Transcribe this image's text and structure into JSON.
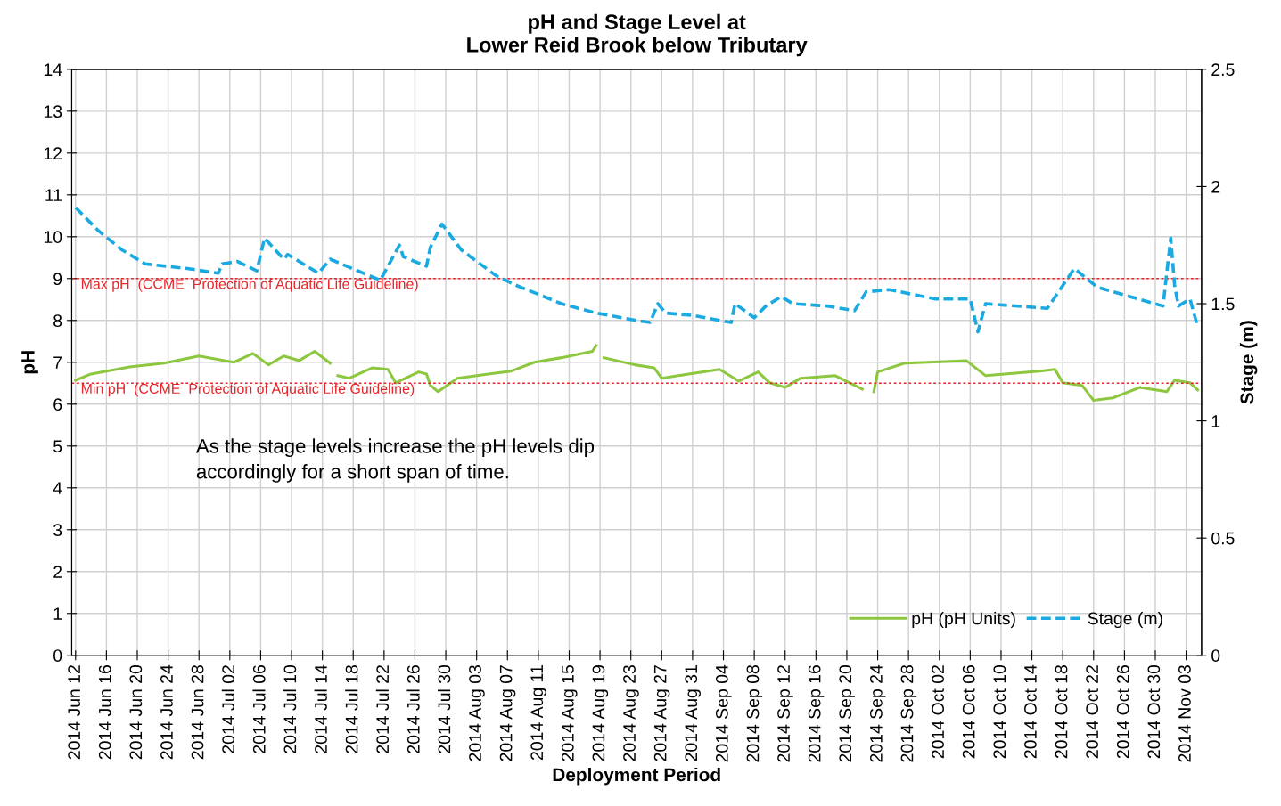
{
  "chart_data": {
    "type": "line",
    "title": "pH and Stage Level at\nLower Reid Brook below Tributary",
    "xlabel": "Deployment Period",
    "ylabel": "pH",
    "y2label": "Stage (m)",
    "xlim": [
      "2014-06-11T12:00",
      "2014-11-05"
    ],
    "xticks": [
      {
        "value": "2014-06-12",
        "label": "2014 Jun 12"
      },
      {
        "value": "2014-06-16",
        "label": "2014 Jun 16"
      },
      {
        "value": "2014-06-20",
        "label": "2014 Jun 20"
      },
      {
        "value": "2014-06-24",
        "label": "2014 Jun 24"
      },
      {
        "value": "2014-06-28",
        "label": "2014 Jun 28"
      },
      {
        "value": "2014-07-02",
        "label": "2014 Jul 02"
      },
      {
        "value": "2014-07-06",
        "label": "2014 Jul 06"
      },
      {
        "value": "2014-07-10",
        "label": "2014 Jul 10"
      },
      {
        "value": "2014-07-14",
        "label": "2014 Jul 14"
      },
      {
        "value": "2014-07-18",
        "label": "2014 Jul 18"
      },
      {
        "value": "2014-07-22",
        "label": "2014 Jul 22"
      },
      {
        "value": "2014-07-26",
        "label": "2014 Jul 26"
      },
      {
        "value": "2014-07-30",
        "label": "2014 Jul 30"
      },
      {
        "value": "2014-08-03",
        "label": "2014 Aug 03"
      },
      {
        "value": "2014-08-07",
        "label": "2014 Aug 07"
      },
      {
        "value": "2014-08-11",
        "label": "2014 Aug 11"
      },
      {
        "value": "2014-08-15",
        "label": "2014 Aug 15"
      },
      {
        "value": "2014-08-19",
        "label": "2014 Aug 19"
      },
      {
        "value": "2014-08-23",
        "label": "2014 Aug 23"
      },
      {
        "value": "2014-08-27",
        "label": "2014 Aug 27"
      },
      {
        "value": "2014-08-31",
        "label": "2014 Aug 31"
      },
      {
        "value": "2014-09-04",
        "label": "2014 Sep 04"
      },
      {
        "value": "2014-09-08",
        "label": "2014 Sep 08"
      },
      {
        "value": "2014-09-12",
        "label": "2014 Sep 12"
      },
      {
        "value": "2014-09-16",
        "label": "2014 Sep 16"
      },
      {
        "value": "2014-09-20",
        "label": "2014 Sep 20"
      },
      {
        "value": "2014-09-24",
        "label": "2014 Sep 24"
      },
      {
        "value": "2014-09-28",
        "label": "2014 Sep 28"
      },
      {
        "value": "2014-10-02",
        "label": "2014 Oct 02"
      },
      {
        "value": "2014-10-06",
        "label": "2014 Oct 06"
      },
      {
        "value": "2014-10-10",
        "label": "2014 Oct 10"
      },
      {
        "value": "2014-10-14",
        "label": "2014 Oct 14"
      },
      {
        "value": "2014-10-18",
        "label": "2014 Oct 18"
      },
      {
        "value": "2014-10-22",
        "label": "2014 Oct 22"
      },
      {
        "value": "2014-10-26",
        "label": "2014 Oct 26"
      },
      {
        "value": "2014-10-30",
        "label": "2014 Oct 30"
      },
      {
        "value": "2014-11-03",
        "label": "2014 Nov 03"
      }
    ],
    "ylim": [
      0,
      14
    ],
    "yticks": [
      0,
      1,
      2,
      3,
      4,
      5,
      6,
      7,
      8,
      9,
      10,
      11,
      12,
      13,
      14
    ],
    "y2lim": [
      0,
      2.5
    ],
    "y2ticks": [
      0,
      0.5,
      1,
      1.5,
      2,
      2.5
    ],
    "grid": true,
    "legend": "bottom right",
    "ref_lines": [
      {
        "axis": "y",
        "value": 9,
        "label": "Max pH  (CCME  Protection of Aquatic Life Guideline)",
        "color": "#e8252a",
        "line_style": "dotted"
      },
      {
        "axis": "y",
        "value": 6.5,
        "label": "Min pH  (CCME  Protection of Aquatic Life Guideline)",
        "color": "#e8252a",
        "line_style": "dotted"
      }
    ],
    "annotations": [
      "As the stage levels increase the pH levels dip\naccordingly for a short span of time."
    ],
    "series": [
      {
        "name": "pH (pH Units)",
        "color": "#8dc63f",
        "line_style": "solid",
        "x": [
          "2014-06-12T00:00",
          "2014-06-14T00:00",
          "2014-06-19T00:00",
          "2014-06-23T12:00",
          "2014-06-28T00:00",
          "2014-07-02T12:00",
          "2014-07-05T00:00",
          "2014-07-07T00:00",
          "2014-07-09T00:00",
          "2014-07-11T00:00",
          "2014-07-13T00:00",
          "2014-07-15T00:00",
          "2014-07-15T12:00",
          "2014-07-16T00:00",
          "2014-07-17T12:00",
          "2014-07-20T12:00",
          "2014-07-22T12:00",
          "2014-07-23T12:00",
          "2014-07-26T12:00",
          "2014-07-27T12:00",
          "2014-07-28T00:00",
          "2014-07-29T00:00",
          "2014-07-31T12:00",
          "2014-08-04T12:00",
          "2014-08-07T12:00",
          "2014-08-10T12:00",
          "2014-08-14T00:00",
          "2014-08-18T00:00",
          "2014-08-18T12:00",
          "2014-08-19T00:00",
          "2014-08-19T12:00",
          "2014-08-23T12:00",
          "2014-08-26T00:00",
          "2014-08-27T00:00",
          "2014-08-30T12:00",
          "2014-09-03T12:00",
          "2014-09-06T00:00",
          "2014-09-08T12:00",
          "2014-09-10T00:00",
          "2014-09-12T00:00",
          "2014-09-14T00:00",
          "2014-09-18T12:00",
          "2014-09-22T00:00",
          "2014-09-23T00:00",
          "2014-09-23T12:00",
          "2014-09-24T00:00",
          "2014-09-27T12:00",
          "2014-10-05T12:00",
          "2014-10-08T00:00",
          "2014-10-15T00:00",
          "2014-10-17T00:00",
          "2014-10-18T00:00",
          "2014-10-20T12:00",
          "2014-10-22T00:00",
          "2014-10-24T12:00",
          "2014-10-28T00:00",
          "2014-10-31T12:00",
          "2014-11-01T12:00",
          "2014-11-03T12:00",
          "2014-11-04T12:00"
        ],
        "values": [
          6.57,
          6.72,
          6.89,
          6.98,
          7.15,
          7.0,
          7.21,
          6.94,
          7.15,
          7.04,
          7.26,
          6.98,
          null,
          6.68,
          6.62,
          6.87,
          6.83,
          6.51,
          6.77,
          6.72,
          6.45,
          6.3,
          6.62,
          6.72,
          6.79,
          7.0,
          7.11,
          7.26,
          7.4,
          null,
          7.11,
          6.94,
          6.87,
          6.62,
          6.72,
          6.83,
          6.55,
          6.77,
          6.51,
          6.4,
          6.62,
          6.68,
          6.36,
          null,
          6.3,
          6.77,
          6.98,
          7.04,
          6.68,
          6.79,
          6.83,
          6.51,
          6.45,
          6.09,
          6.15,
          6.4,
          6.3,
          6.57,
          6.51,
          6.34
        ]
      },
      {
        "name": "Stage (m)",
        "color": "#1aa9e0",
        "line_style": "dashed",
        "axis": "y2",
        "x": [
          "2014-06-12T00:00",
          "2014-06-15T00:00",
          "2014-06-18T00:00",
          "2014-06-21T00:00",
          "2014-06-26T12:00",
          "2014-06-30T12:00",
          "2014-07-01T00:00",
          "2014-07-03T00:00",
          "2014-07-05T12:00",
          "2014-07-06T12:00",
          "2014-07-09T00:00",
          "2014-07-09T12:00",
          "2014-07-13T12:00",
          "2014-07-15T00:00",
          "2014-07-21T12:00",
          "2014-07-24T00:00",
          "2014-07-24T12:00",
          "2014-07-27T12:00",
          "2014-07-28T00:00",
          "2014-07-29T12:00",
          "2014-08-01T00:00",
          "2014-08-05T12:00",
          "2014-08-08T00:00",
          "2014-08-14T00:00",
          "2014-08-18T12:00",
          "2014-08-23T12:00",
          "2014-08-25T12:00",
          "2014-08-26T12:00",
          "2014-08-27T12:00",
          "2014-08-31T00:00",
          "2014-09-05T00:00",
          "2014-09-05T12:00",
          "2014-09-08T00:00",
          "2014-09-09T12:00",
          "2014-09-11T12:00",
          "2014-09-13T00:00",
          "2014-09-17T12:00",
          "2014-09-21T00:00",
          "2014-09-22T12:00",
          "2014-09-25T12:00",
          "2014-10-01T12:00",
          "2014-10-06T00:00",
          "2014-10-07T00:00",
          "2014-10-08T00:00",
          "2014-10-16T00:00",
          "2014-10-19T12:00",
          "2014-10-22T12:00",
          "2014-10-31T00:00",
          "2014-11-01T00:00",
          "2014-11-01T12:00",
          "2014-11-02T00:00",
          "2014-11-03T12:00",
          "2014-11-04T12:00"
        ],
        "values": [
          1.91,
          1.81,
          1.73,
          1.67,
          1.65,
          1.63,
          1.67,
          1.68,
          1.64,
          1.78,
          1.69,
          1.71,
          1.63,
          1.69,
          1.6,
          1.75,
          1.7,
          1.66,
          1.74,
          1.84,
          1.73,
          1.62,
          1.58,
          1.5,
          1.46,
          1.43,
          1.42,
          1.5,
          1.46,
          1.45,
          1.42,
          1.5,
          1.44,
          1.49,
          1.53,
          1.5,
          1.49,
          1.47,
          1.55,
          1.56,
          1.52,
          1.52,
          1.38,
          1.5,
          1.48,
          1.65,
          1.57,
          1.49,
          1.78,
          1.58,
          1.49,
          1.52,
          1.4
        ]
      }
    ]
  }
}
